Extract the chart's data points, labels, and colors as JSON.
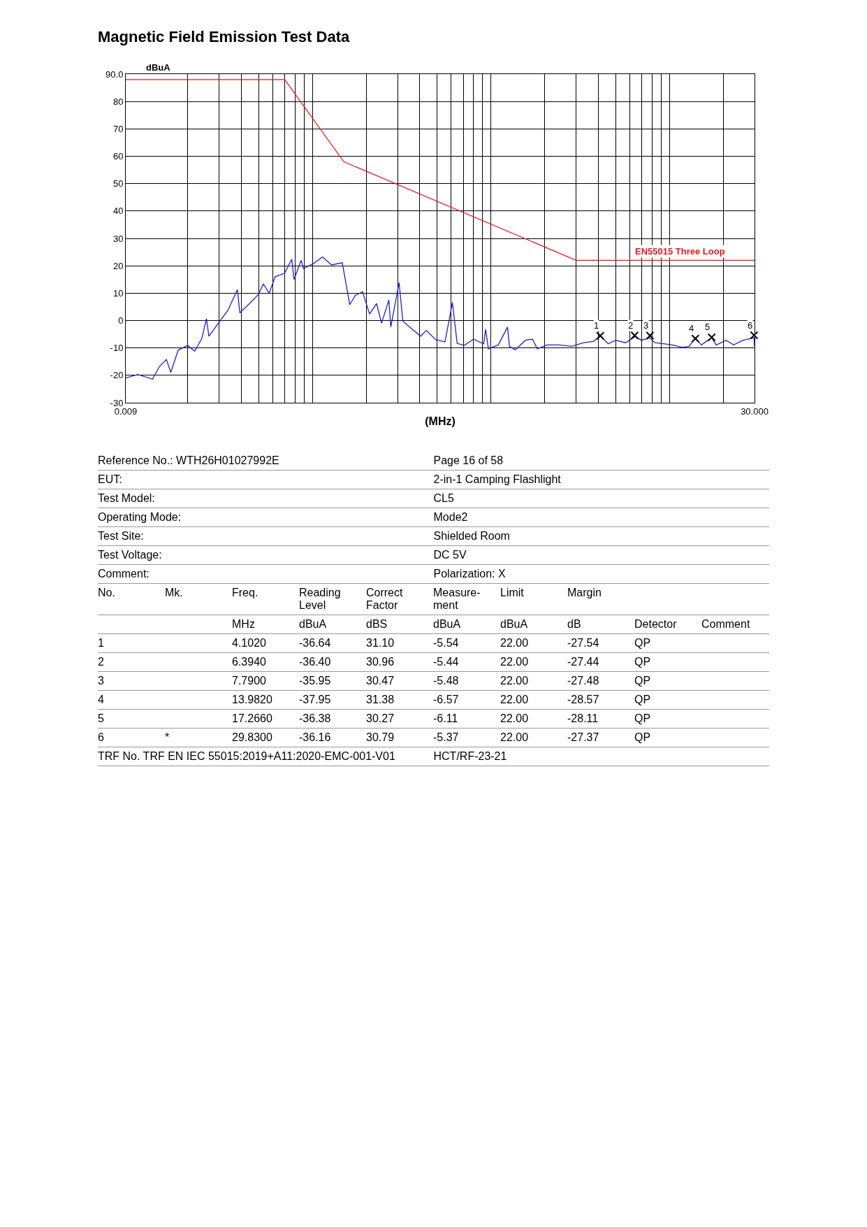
{
  "chart_data": {
    "type": "line",
    "title": "Magnetic Field Emission Test Data",
    "xlabel": "(MHz)",
    "ylabel": "dBuA",
    "log": "x",
    "grid": true,
    "legend": false,
    "xlim": [
      0.009,
      30
    ],
    "ylim": [
      -30,
      90
    ],
    "xticks": [
      {
        "value": 0.009,
        "label": "0.009"
      },
      {
        "value": 0.02,
        "label": null
      },
      {
        "value": 0.03,
        "label": null
      },
      {
        "value": 0.04,
        "label": null
      },
      {
        "value": 0.05,
        "label": null
      },
      {
        "value": 0.06,
        "label": null
      },
      {
        "value": 0.07,
        "label": null
      },
      {
        "value": 0.08,
        "label": null
      },
      {
        "value": 0.09,
        "label": null
      },
      {
        "value": 0.1,
        "label": null
      },
      {
        "value": 0.2,
        "label": null
      },
      {
        "value": 0.3,
        "label": null
      },
      {
        "value": 0.4,
        "label": null
      },
      {
        "value": 0.5,
        "label": null
      },
      {
        "value": 0.6,
        "label": null
      },
      {
        "value": 0.7,
        "label": null
      },
      {
        "value": 0.8,
        "label": null
      },
      {
        "value": 0.9,
        "label": null
      },
      {
        "value": 1,
        "label": null
      },
      {
        "value": 2,
        "label": null
      },
      {
        "value": 3,
        "label": null
      },
      {
        "value": 4,
        "label": null
      },
      {
        "value": 5,
        "label": null
      },
      {
        "value": 6,
        "label": null
      },
      {
        "value": 7,
        "label": null
      },
      {
        "value": 8,
        "label": null
      },
      {
        "value": 9,
        "label": null
      },
      {
        "value": 10,
        "label": null
      },
      {
        "value": 20,
        "label": null
      },
      {
        "value": 30,
        "label": "30.000"
      }
    ],
    "yticks": [
      -30,
      -20,
      -10,
      0,
      10,
      20,
      30,
      40,
      50,
      60,
      70,
      80,
      {
        "value": 90,
        "label": "90.0"
      }
    ],
    "series": [
      {
        "name": "EN55015 Three Loop",
        "color": "#e01b22",
        "x": [
          0.009,
          0.07,
          0.15,
          3,
          30
        ],
        "values": [
          88,
          88,
          58,
          22,
          22
        ]
      },
      {
        "color": "#1f1fc4",
        "x": [
          0.009,
          0.0105,
          0.0127,
          0.0139,
          0.0152,
          0.0161,
          0.0177,
          0.02,
          0.0219,
          0.024,
          0.0255,
          0.0263,
          0.0297,
          0.0336,
          0.038,
          0.0392,
          0.0444,
          0.0499,
          0.0531,
          0.0573,
          0.0618,
          0.0699,
          0.0766,
          0.0789,
          0.0865,
          0.0891,
          0.1007,
          0.114,
          0.128,
          0.147,
          0.162,
          0.174,
          0.191,
          0.209,
          0.229,
          0.244,
          0.268,
          0.275,
          0.306,
          0.321,
          0.362,
          0.404,
          0.435,
          0.491,
          0.553,
          0.609,
          0.647,
          0.708,
          0.799,
          0.911,
          0.934,
          0.969,
          1.1,
          1.24,
          1.27,
          1.37,
          1.56,
          1.71,
          1.82,
          2.07,
          2.42,
          2.83,
          3.31,
          3.76,
          4.102,
          4.54,
          5.0,
          5.68,
          6.394,
          6.98,
          7.79,
          8.3,
          9.42,
          10.4,
          11.8,
          12.9,
          13.982,
          15.1,
          17.266,
          18.3,
          20.8,
          22.9,
          25.9,
          29.83,
          30
        ],
        "values": [
          -21,
          -19.7,
          -21.4,
          -16.8,
          -14.2,
          -18.9,
          -10.8,
          -9.1,
          -11.2,
          -6.6,
          0.7,
          -5.7,
          -1,
          3.7,
          11.3,
          2.8,
          6.2,
          9.6,
          13.4,
          10,
          16,
          17.3,
          22.4,
          15,
          22,
          19,
          20.7,
          23.2,
          20.3,
          21.1,
          5.8,
          9.2,
          10.5,
          2.4,
          6.2,
          -1,
          7.5,
          -2.3,
          13.9,
          -0.2,
          -3.1,
          -5.7,
          -3.6,
          -7,
          -7.8,
          6.6,
          -8.3,
          -9.1,
          -6.8,
          -8.5,
          -3.2,
          -10.3,
          -8.9,
          -2.4,
          -9.4,
          -10.7,
          -7.2,
          -6.8,
          -10.3,
          -8.9,
          -8.9,
          -9.4,
          -8.1,
          -7.6,
          -5.5,
          -8.5,
          -7.2,
          -8.1,
          -5.9,
          -7.2,
          -6.3,
          -8.1,
          -8.5,
          -8.9,
          -9.8,
          -9.4,
          -6.3,
          -8.9,
          -6.3,
          -8.9,
          -7.2,
          -8.9,
          -7.2,
          -6.3,
          -9.4
        ]
      },
      {
        "type": "scatter",
        "marker": "cross",
        "color": "#000000",
        "x": [
          4.102,
          6.394,
          7.79,
          13.982,
          17.266,
          29.83
        ],
        "values": [
          -5.54,
          -5.44,
          -5.48,
          -6.57,
          -6.11,
          -5.37
        ]
      }
    ],
    "annotations": [
      {
        "text": "1",
        "x": 4.102,
        "y": -5.54
      },
      {
        "text": "2",
        "x": 6.394,
        "y": -5.44
      },
      {
        "text": "3",
        "x": 7.79,
        "y": -5.48
      },
      {
        "text": "4",
        "x": 13.982,
        "y": -6.57
      },
      {
        "text": "5",
        "x": 17.266,
        "y": -6.11
      },
      {
        "text": "6",
        "x": 29.83,
        "y": -5.37
      },
      "Reference No.: WTH26H01027992E\tPage 16 of 58",
      "EUT:\t2-in-1 Camping Flashlight",
      "Test Model:\tCL5",
      "Operating Mode:\tMode2",
      "Test Site:\tShielded Room",
      "Test Voltage:\tDC 5V",
      "Comment:\tPolarization: X",
      "No.\tMk.\tFreq.\tReading Level\tCorrect Factor\tMeasure-ment\tLimit\tMargin",
      "\t\tMHz\tdBuA\tdBS\tdBuA\tdBuA\tdB\tDetector\tComment",
      "1\t\t4.1020\t-36.64\t31.10\t-5.54\t22.00\t-27.54\tQP",
      "2\t\t6.3940\t-36.40\t30.96\t-5.44\t22.00\t-27.44\tQP",
      "3\t\t7.7900\t-35.95\t30.47\t-5.48\t22.00\t-27.48\tQP",
      "4\t\t13.9820\t-37.95\t31.38\t-6.57\t22.00\t-28.57\tQP",
      "5\t\t17.2660\t-36.38\t30.27\t-6.11\t22.00\t-28.11\tQP",
      "6\t*\t29.8300\t-36.16\t30.79\t-5.37\t22.00\t-27.37\tQP",
      "TRF No. TRF EN IEC 55015:2019+A11:2020-EMC-001-V01\tHCT/RF-23-21"
    ]
  }
}
